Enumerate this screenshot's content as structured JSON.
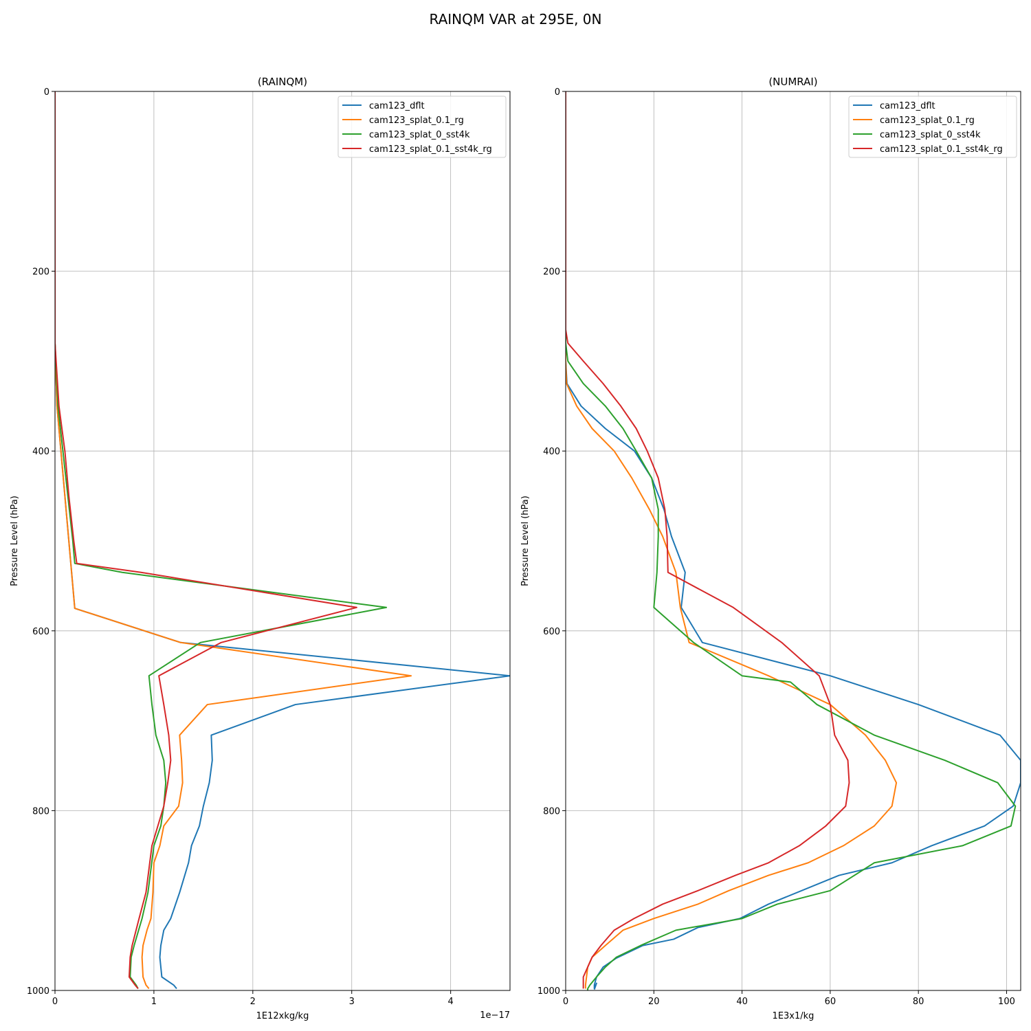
{
  "figure_title": "RAINQM VAR at 295E, 0N",
  "chart_data": [
    {
      "type": "line",
      "title": "(RAINQM)",
      "xlabel": "1E12xkg/kg",
      "ylabel": "Pressure Level (hPa)",
      "x_offset_text": "1e−17",
      "xlim": [
        0,
        4.6
      ],
      "ylim": [
        1000,
        0
      ],
      "y_inverted": true,
      "grid": true,
      "legend": "top-right",
      "xticks": [
        0,
        1,
        2,
        3,
        4
      ],
      "xtick_labels": [
        "0",
        "1",
        "2",
        "3",
        "4"
      ],
      "yticks": [
        0,
        200,
        400,
        600,
        800,
        1000
      ],
      "ytick_labels": [
        "0",
        "200",
        "400",
        "600",
        "800",
        "1000"
      ],
      "series": [
        {
          "name": "cam123_dflt",
          "color": "#1f77b4",
          "x": [
            0,
            0,
            0.02,
            0.06,
            0.1,
            0.14,
            0.2,
            1.27,
            4.6,
            2.43,
            1.58,
            1.59,
            1.56,
            1.5,
            1.46,
            1.38,
            1.35,
            1.26,
            1.17,
            1.1,
            1.07,
            1.06,
            1.08,
            1.2,
            1.23
          ],
          "y": [
            0,
            280,
            350,
            400,
            450,
            500,
            575,
            613,
            650,
            682,
            716,
            744,
            769,
            795,
            817,
            839,
            858,
            891,
            920,
            933,
            950,
            963,
            985,
            994,
            998
          ]
        },
        {
          "name": "cam123_splat_0.1_rg",
          "color": "#ff7f0e",
          "x": [
            0,
            0,
            0.02,
            0.06,
            0.1,
            0.14,
            0.2,
            1.27,
            3.6,
            1.54,
            1.26,
            1.28,
            1.29,
            1.25,
            1.1,
            1.06,
            1.0,
            0.99,
            0.97,
            0.93,
            0.89,
            0.88,
            0.89,
            0.92,
            0.95
          ],
          "y": [
            0,
            280,
            350,
            400,
            450,
            500,
            575,
            613,
            650,
            682,
            716,
            744,
            769,
            795,
            817,
            839,
            858,
            891,
            920,
            933,
            950,
            963,
            985,
            994,
            998
          ]
        },
        {
          "name": "cam123_splat_0_sst4k",
          "color": "#2ca02c",
          "x": [
            0,
            0,
            0.03,
            0.08,
            0.13,
            0.18,
            0.2,
            0.68,
            3.35,
            1.47,
            0.95,
            0.98,
            1.02,
            1.1,
            1.12,
            1.1,
            1.07,
            1.0,
            0.94,
            0.88,
            0.8,
            0.77,
            0.76,
            0.82,
            0.84
          ],
          "y": [
            0,
            280,
            350,
            400,
            450,
            500,
            525,
            535,
            574,
            613,
            650,
            682,
            716,
            744,
            769,
            795,
            817,
            839,
            891,
            920,
            950,
            963,
            985,
            994,
            998
          ]
        },
        {
          "name": "cam123_splat_0.1_sst4k_rg",
          "color": "#d62728",
          "x": [
            0,
            0,
            0.04,
            0.1,
            0.14,
            0.19,
            0.22,
            0.87,
            3.05,
            1.68,
            1.05,
            1.1,
            1.15,
            1.17,
            1.14,
            1.1,
            1.04,
            0.98,
            0.92,
            0.85,
            0.78,
            0.76,
            0.75,
            0.81,
            0.84
          ],
          "y": [
            0,
            280,
            350,
            400,
            450,
            500,
            525,
            535,
            574,
            613,
            650,
            682,
            716,
            744,
            769,
            795,
            817,
            839,
            891,
            920,
            950,
            963,
            985,
            994,
            998
          ]
        }
      ]
    },
    {
      "type": "line",
      "title": "(NUMRAI)",
      "xlabel": "1E3x1/kg",
      "ylabel": "Pressure Level (hPa)",
      "x_offset_text": "",
      "xlim": [
        0,
        103.2
      ],
      "ylim": [
        1000,
        0
      ],
      "y_inverted": true,
      "grid": true,
      "legend": "top-right",
      "xticks": [
        0,
        20,
        40,
        60,
        80,
        100
      ],
      "xtick_labels": [
        "0",
        "20",
        "40",
        "60",
        "80",
        "100"
      ],
      "yticks": [
        0,
        200,
        400,
        600,
        800,
        1000
      ],
      "ytick_labels": [
        "0",
        "200",
        "400",
        "600",
        "800",
        "1000"
      ],
      "series": [
        {
          "name": "cam123_dflt",
          "color": "#1f77b4",
          "x": [
            0,
            0,
            0,
            0.3,
            3.5,
            9,
            15.6,
            19.5,
            22.3,
            24,
            27.1,
            26.2,
            31,
            60,
            80,
            98.5,
            103.2,
            103.2,
            101.5,
            95,
            83,
            74,
            62,
            46,
            39.5,
            30,
            24.5,
            17.5,
            11.5,
            8.5,
            7,
            6.5,
            6.5,
            7,
            6.5
          ],
          "y": [
            0,
            260,
            300,
            325,
            350,
            375,
            400,
            430,
            465,
            495,
            535,
            574,
            613,
            650,
            682,
            716,
            744,
            769,
            795,
            817,
            839,
            858,
            872,
            904,
            920,
            930,
            943,
            950,
            964,
            974,
            985,
            994,
            998,
            992,
            999
          ]
        },
        {
          "name": "cam123_splat_0.1_rg",
          "color": "#ff7f0e",
          "x": [
            0,
            0,
            0,
            0.2,
            2.5,
            6,
            11,
            15,
            19,
            22,
            25,
            26,
            28,
            46,
            60,
            68,
            72.5,
            75,
            74,
            70,
            63,
            55,
            46,
            37,
            30,
            20,
            13,
            9,
            6,
            5,
            4.5,
            4.5
          ],
          "y": [
            0,
            260,
            300,
            325,
            350,
            375,
            400,
            430,
            465,
            495,
            535,
            574,
            613,
            650,
            682,
            716,
            744,
            769,
            795,
            817,
            839,
            858,
            872,
            889,
            904,
            920,
            933,
            950,
            963,
            974,
            994,
            998
          ]
        },
        {
          "name": "cam123_splat_0_sst4k",
          "color": "#2ca02c",
          "x": [
            0,
            0,
            0,
            0.5,
            4,
            9,
            13,
            16,
            19.5,
            21,
            21,
            20.7,
            20,
            29,
            40,
            51,
            57,
            70,
            86,
            98,
            102,
            101,
            90,
            70,
            60,
            48,
            40,
            25,
            17,
            11.5,
            9,
            7,
            5.5,
            5,
            5,
            5,
            5
          ],
          "y": [
            0,
            260,
            280,
            300,
            325,
            350,
            375,
            400,
            430,
            465,
            495,
            535,
            574,
            613,
            650,
            657,
            682,
            716,
            744,
            769,
            795,
            817,
            839,
            858,
            889,
            904,
            920,
            933,
            950,
            963,
            974,
            985,
            994,
            998,
            1000,
            1000,
            1000
          ]
        },
        {
          "name": "cam123_splat_0.1_sst4k_rg",
          "color": "#d62728",
          "x": [
            0,
            0,
            0.5,
            4,
            8.5,
            12.5,
            16,
            18.5,
            21,
            22.5,
            23,
            23.2,
            38,
            49,
            57.5,
            60,
            61,
            64,
            64.3,
            63.5,
            59,
            53,
            46,
            38.5,
            30,
            22,
            15.5,
            11,
            8,
            6,
            5,
            4,
            4,
            4
          ],
          "y": [
            0,
            265,
            280,
            300,
            325,
            350,
            375,
            400,
            430,
            465,
            495,
            535,
            574,
            613,
            650,
            682,
            716,
            744,
            769,
            795,
            817,
            839,
            858,
            872,
            889,
            904,
            920,
            933,
            950,
            963,
            974,
            985,
            994,
            998
          ]
        }
      ]
    }
  ]
}
